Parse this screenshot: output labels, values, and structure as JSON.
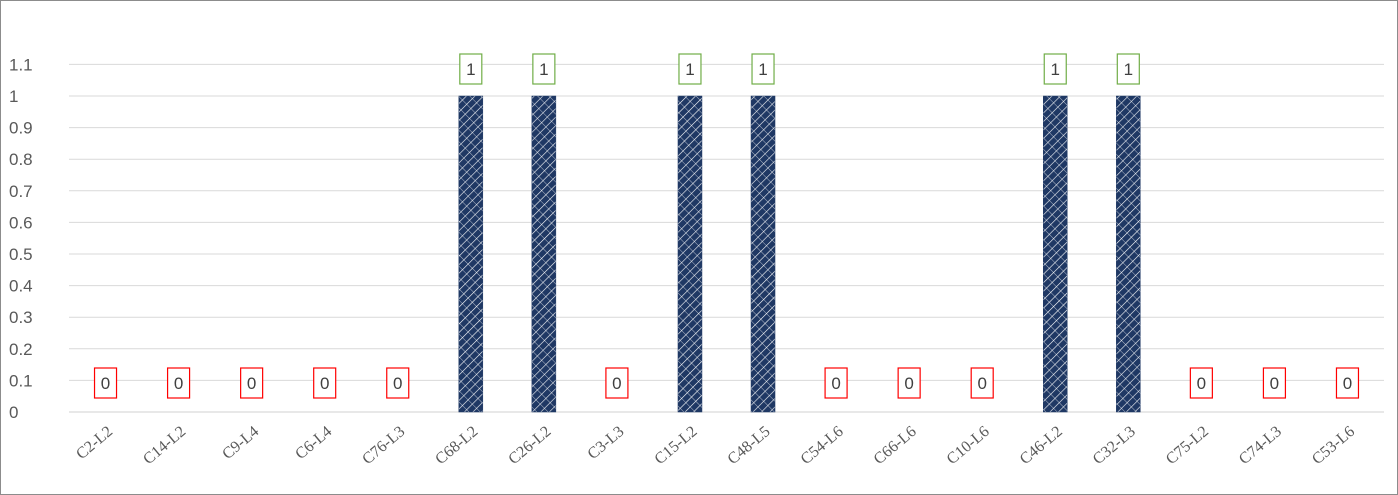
{
  "chart_data": {
    "type": "bar",
    "categories": [
      "C2-L2",
      "C14-L2",
      "C9-L4",
      "C6-L4",
      "C76-L3",
      "C68-L2",
      "C26-L2",
      "C3-L3",
      "C15-L2",
      "C48-L5",
      "C54-L6",
      "C66-L6",
      "C10-L6",
      "C46-L2",
      "C32-L3",
      "C75-L2",
      "C74-L3",
      "C53-L6"
    ],
    "values": [
      0,
      0,
      0,
      0,
      0,
      1,
      1,
      0,
      1,
      1,
      0,
      0,
      0,
      1,
      1,
      0,
      0,
      0
    ],
    "y_ticks": [
      "0",
      "0.1",
      "0.2",
      "0.3",
      "0.4",
      "0.5",
      "0.6",
      "0.7",
      "0.8",
      "0.9",
      "1",
      "1.1"
    ],
    "ylim": [
      0,
      1.1
    ],
    "grid": true,
    "legend": "none",
    "colors": {
      "bar": "#1f3864",
      "bar_hatch": "#ffffff",
      "label_box_one": "#70ad47",
      "label_box_zero": "#ff0000",
      "grid": "#d9d9d9",
      "axis": "#d9d9d9"
    }
  }
}
